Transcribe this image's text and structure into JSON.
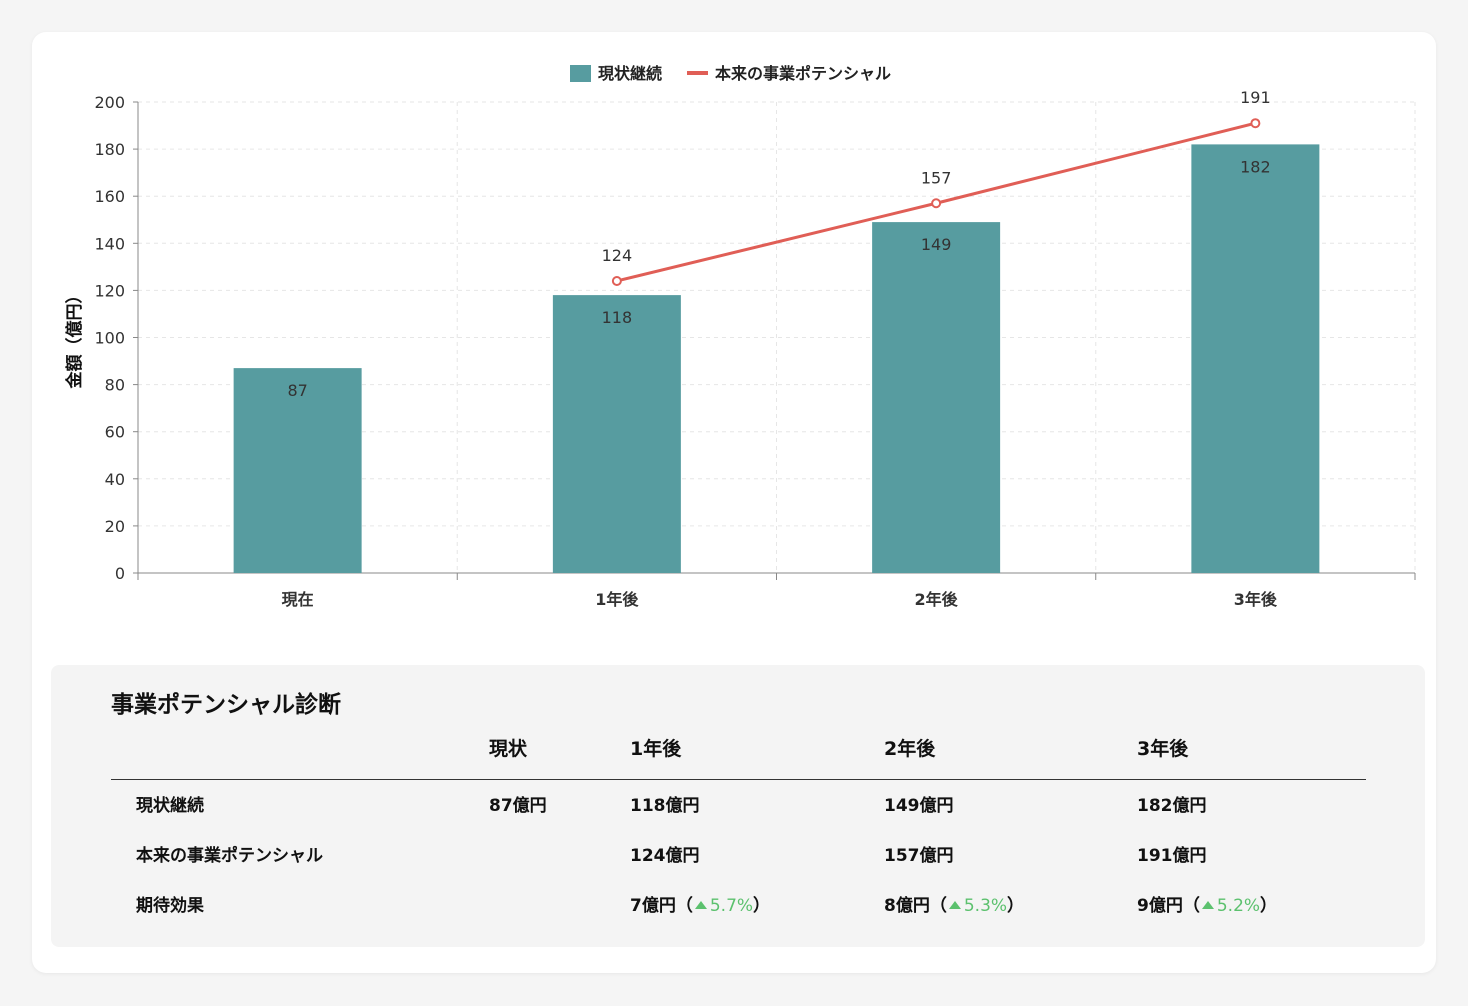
{
  "chart_data": {
    "type": "bar",
    "categories": [
      "現在",
      "1年後",
      "2年後",
      "3年後"
    ],
    "ylabel": "金額（億円）",
    "ylim": [
      0,
      200
    ],
    "yticks": [
      0,
      20,
      40,
      60,
      80,
      100,
      120,
      140,
      160,
      180,
      200
    ],
    "grid": true,
    "legend_position": "top",
    "series": [
      {
        "name": "現状継続",
        "type": "bar",
        "color": "#579ca0",
        "values": [
          87,
          118,
          149,
          182
        ]
      },
      {
        "name": "本来の事業ポテンシャル",
        "type": "line",
        "color": "#e05e56",
        "values": [
          null,
          124,
          157,
          191
        ]
      }
    ]
  },
  "panel": {
    "title": "事業ポテンシャル診断",
    "headers": [
      "",
      "現状",
      "1年後",
      "2年後",
      "3年後"
    ],
    "rows": [
      {
        "label": "現状継続",
        "values": [
          "87億円",
          "118億円",
          "149億円",
          "182億円"
        ]
      },
      {
        "label": "本来の事業ポテンシャル",
        "values": [
          "",
          "124億円",
          "157億円",
          "191億円"
        ]
      },
      {
        "label": "期待効果",
        "values": [
          "",
          "7億円（",
          "8億円（",
          "9億円（"
        ],
        "gains": [
          "",
          "5.7%",
          "5.3%",
          "5.2%"
        ],
        "close": "）"
      }
    ]
  }
}
